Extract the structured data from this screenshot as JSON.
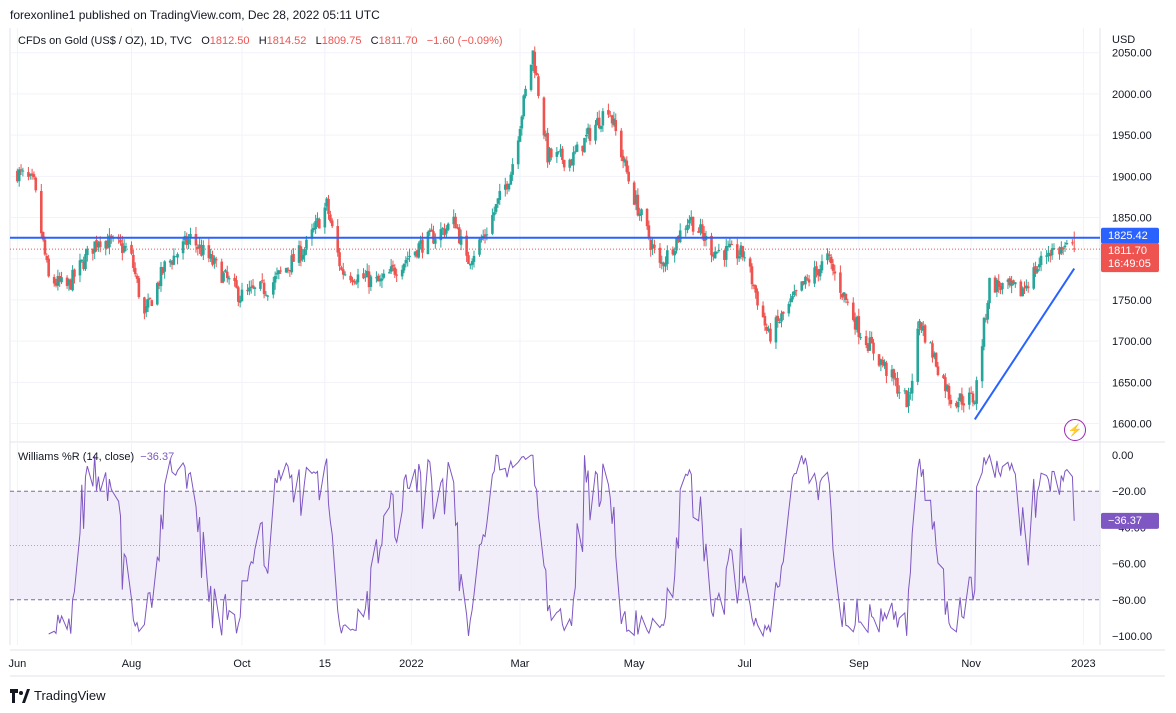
{
  "header": {
    "publisher_line": "forexonline1 published on TradingView.com, Dec 28, 2022 05:11 UTC"
  },
  "legend": {
    "symbol": "CFDs on Gold (US$ / OZ), 1D, TVC",
    "open_label": "O",
    "open": "1812.50",
    "high_label": "H",
    "high": "1814.52",
    "low_label": "L",
    "low": "1809.75",
    "close_label": "C",
    "close": "1811.70",
    "change": "−1.60 (−0.09%)"
  },
  "currency": "USD",
  "price_axis": {
    "ticks": [
      "2050.00",
      "2000.00",
      "1950.00",
      "1900.00",
      "1850.00",
      "1800.00",
      "1750.00",
      "1700.00",
      "1650.00",
      "1600.00"
    ]
  },
  "badges": {
    "level": "1825.42",
    "last_price": "1811.70",
    "countdown": "16:49:05",
    "wr": "−36.37"
  },
  "indicator": {
    "name": "Williams %R (14, close)",
    "value": "−36.37",
    "ticks": [
      "0.00",
      "−20.00",
      "−40.00",
      "−60.00",
      "−80.00",
      "−100.00"
    ]
  },
  "time_axis": {
    "labels": [
      "Jun",
      "Aug",
      "Oct",
      "15",
      "2022",
      "Mar",
      "May",
      "Jul",
      "Sep",
      "Nov",
      "2023"
    ]
  },
  "brand": "TradingView",
  "colors": {
    "up": "#26a69a",
    "down": "#ef5350",
    "level_line": "#2962ff",
    "trend_line": "#2962ff",
    "wr_line": "#7e57c2",
    "wr_band": "#ede7f6",
    "badge_blue": "#2962ff",
    "badge_red": "#ef5350",
    "badge_purple": "#7e57c2"
  },
  "chart_data": {
    "type": "candlestick",
    "price_range": [
      1580,
      2080
    ],
    "horizontal_level": 1825.42,
    "last_close": 1811.7,
    "trendline": [
      {
        "x": "2022-11-03",
        "y": 1605
      },
      {
        "x": "2022-12-27",
        "y": 1788
      }
    ],
    "closes_anchors": [
      {
        "x": "2021-06-01",
        "y": 1905
      },
      {
        "x": "2021-06-10",
        "y": 1890
      },
      {
        "x": "2021-06-18",
        "y": 1775
      },
      {
        "x": "2021-06-28",
        "y": 1765
      },
      {
        "x": "2021-07-15",
        "y": 1825
      },
      {
        "x": "2021-08-01",
        "y": 1810
      },
      {
        "x": "2021-08-09",
        "y": 1730
      },
      {
        "x": "2021-08-20",
        "y": 1790
      },
      {
        "x": "2021-09-03",
        "y": 1825
      },
      {
        "x": "2021-09-15",
        "y": 1795
      },
      {
        "x": "2021-09-30",
        "y": 1755
      },
      {
        "x": "2021-10-15",
        "y": 1765
      },
      {
        "x": "2021-11-05",
        "y": 1815
      },
      {
        "x": "2021-11-16",
        "y": 1865
      },
      {
        "x": "2021-11-24",
        "y": 1785
      },
      {
        "x": "2021-12-15",
        "y": 1770
      },
      {
        "x": "2022-01-05",
        "y": 1815
      },
      {
        "x": "2022-01-25",
        "y": 1845
      },
      {
        "x": "2022-01-31",
        "y": 1795
      },
      {
        "x": "2022-02-10",
        "y": 1830
      },
      {
        "x": "2022-02-24",
        "y": 1905
      },
      {
        "x": "2022-03-08",
        "y": 2050
      },
      {
        "x": "2022-03-16",
        "y": 1925
      },
      {
        "x": "2022-03-29",
        "y": 1920
      },
      {
        "x": "2022-04-18",
        "y": 1985
      },
      {
        "x": "2022-05-01",
        "y": 1880
      },
      {
        "x": "2022-05-16",
        "y": 1790
      },
      {
        "x": "2022-06-01",
        "y": 1850
      },
      {
        "x": "2022-06-14",
        "y": 1810
      },
      {
        "x": "2022-07-01",
        "y": 1805
      },
      {
        "x": "2022-07-14",
        "y": 1705
      },
      {
        "x": "2022-08-01",
        "y": 1765
      },
      {
        "x": "2022-08-15",
        "y": 1800
      },
      {
        "x": "2022-09-01",
        "y": 1715
      },
      {
        "x": "2022-09-16",
        "y": 1665
      },
      {
        "x": "2022-09-28",
        "y": 1625
      },
      {
        "x": "2022-10-04",
        "y": 1725
      },
      {
        "x": "2022-10-21",
        "y": 1630
      },
      {
        "x": "2022-11-03",
        "y": 1630
      },
      {
        "x": "2022-11-11",
        "y": 1770
      },
      {
        "x": "2022-11-28",
        "y": 1760
      },
      {
        "x": "2022-12-13",
        "y": 1810
      },
      {
        "x": "2022-12-27",
        "y": 1812
      }
    ],
    "williams_r": {
      "name": "Williams %R (14, close)",
      "range": [
        -105,
        5
      ],
      "bands": [
        -20,
        -80
      ],
      "last": -36.37
    }
  }
}
